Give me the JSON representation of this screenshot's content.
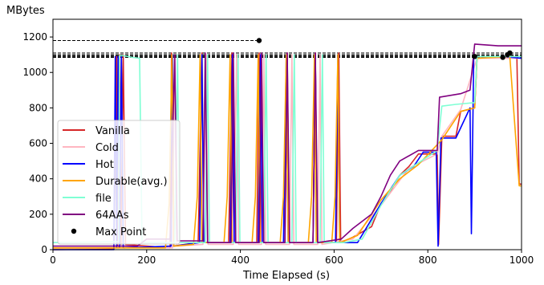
{
  "chart_data": {
    "type": "line",
    "ylabel": "MBytes",
    "xlabel": "Time Elapsed (s)",
    "xlim": [
      0,
      1000
    ],
    "ylim": [
      0,
      1300
    ],
    "x_ticks": [
      0,
      200,
      400,
      600,
      800,
      1000
    ],
    "y_ticks": [
      0,
      200,
      400,
      600,
      800,
      1000,
      1200
    ],
    "grid": false,
    "legend_position": "lower-left",
    "series": [
      {
        "name": "Vanilla",
        "color": "#d62728",
        "points": [
          [
            0,
            0
          ],
          [
            130,
            5
          ],
          [
            136,
            1090
          ],
          [
            138,
            20
          ],
          [
            142,
            1100
          ],
          [
            145,
            30
          ],
          [
            150,
            1100
          ],
          [
            155,
            30
          ],
          [
            250,
            10
          ],
          [
            253,
            1110
          ],
          [
            256,
            20
          ],
          [
            310,
            40
          ],
          [
            318,
            1110
          ],
          [
            322,
            40
          ],
          [
            375,
            40
          ],
          [
            382,
            1110
          ],
          [
            386,
            40
          ],
          [
            435,
            40
          ],
          [
            440,
            1110
          ],
          [
            444,
            40
          ],
          [
            495,
            40
          ],
          [
            500,
            1110
          ],
          [
            504,
            40
          ],
          [
            555,
            40
          ],
          [
            560,
            1110
          ],
          [
            564,
            40
          ],
          [
            605,
            40
          ],
          [
            610,
            1110
          ],
          [
            614,
            40
          ],
          [
            640,
            70
          ],
          [
            680,
            130
          ],
          [
            700,
            260
          ],
          [
            720,
            330
          ],
          [
            740,
            420
          ],
          [
            760,
            470
          ],
          [
            780,
            540
          ],
          [
            820,
            540
          ],
          [
            823,
            30
          ],
          [
            830,
            640
          ],
          [
            860,
            640
          ],
          [
            870,
            780
          ],
          [
            900,
            800
          ],
          [
            905,
            1080
          ],
          [
            990,
            1090
          ],
          [
            995,
            370
          ],
          [
            1000,
            370
          ]
        ]
      },
      {
        "name": "Cold",
        "color": "#ffb6c1",
        "points": [
          [
            0,
            5
          ],
          [
            140,
            10
          ],
          [
            146,
            1090
          ],
          [
            150,
            20
          ],
          [
            255,
            10
          ],
          [
            260,
            1100
          ],
          [
            264,
            20
          ],
          [
            320,
            30
          ],
          [
            327,
            1100
          ],
          [
            331,
            30
          ],
          [
            385,
            30
          ],
          [
            392,
            1100
          ],
          [
            396,
            30
          ],
          [
            445,
            30
          ],
          [
            450,
            1100
          ],
          [
            454,
            30
          ],
          [
            505,
            30
          ],
          [
            510,
            1100
          ],
          [
            514,
            30
          ],
          [
            565,
            30
          ],
          [
            570,
            1100
          ],
          [
            574,
            30
          ],
          [
            640,
            60
          ],
          [
            700,
            250
          ],
          [
            760,
            460
          ],
          [
            820,
            540
          ],
          [
            830,
            640
          ],
          [
            870,
            790
          ],
          [
            905,
            1080
          ],
          [
            1000,
            1080
          ]
        ]
      },
      {
        "name": "Hot",
        "color": "#0000ff",
        "points": [
          [
            0,
            0
          ],
          [
            130,
            0
          ],
          [
            133,
            1090
          ],
          [
            136,
            10
          ],
          [
            139,
            1090
          ],
          [
            142,
            10
          ],
          [
            146,
            1090
          ],
          [
            150,
            10
          ],
          [
            252,
            20
          ],
          [
            255,
            1100
          ],
          [
            258,
            20
          ],
          [
            313,
            40
          ],
          [
            318,
            1100
          ],
          [
            322,
            40
          ],
          [
            378,
            40
          ],
          [
            383,
            1100
          ],
          [
            387,
            40
          ],
          [
            438,
            40
          ],
          [
            443,
            1100
          ],
          [
            447,
            40
          ],
          [
            492,
            40
          ],
          [
            498,
            1100
          ],
          [
            502,
            40
          ],
          [
            555,
            40
          ],
          [
            560,
            1100
          ],
          [
            564,
            40
          ],
          [
            603,
            40
          ],
          [
            608,
            1100
          ],
          [
            612,
            40
          ],
          [
            650,
            40
          ],
          [
            700,
            260
          ],
          [
            740,
            420
          ],
          [
            770,
            470
          ],
          [
            790,
            550
          ],
          [
            818,
            550
          ],
          [
            822,
            20
          ],
          [
            828,
            630
          ],
          [
            860,
            630
          ],
          [
            890,
            800
          ],
          [
            893,
            90
          ],
          [
            898,
            1080
          ],
          [
            960,
            1090
          ],
          [
            1000,
            1080
          ]
        ]
      },
      {
        "name": "Durable(avg.)",
        "color": "#ffa500",
        "points": [
          [
            0,
            10
          ],
          [
            240,
            10
          ],
          [
            248,
            260
          ],
          [
            254,
            1100
          ],
          [
            258,
            20
          ],
          [
            300,
            30
          ],
          [
            308,
            300
          ],
          [
            314,
            1100
          ],
          [
            318,
            40
          ],
          [
            365,
            40
          ],
          [
            372,
            300
          ],
          [
            378,
            1100
          ],
          [
            382,
            40
          ],
          [
            425,
            40
          ],
          [
            432,
            300
          ],
          [
            438,
            1100
          ],
          [
            442,
            40
          ],
          [
            485,
            40
          ],
          [
            492,
            300
          ],
          [
            498,
            1100
          ],
          [
            502,
            40
          ],
          [
            545,
            40
          ],
          [
            552,
            300
          ],
          [
            558,
            1100
          ],
          [
            562,
            40
          ],
          [
            595,
            40
          ],
          [
            602,
            300
          ],
          [
            608,
            1100
          ],
          [
            612,
            40
          ],
          [
            650,
            80
          ],
          [
            700,
            280
          ],
          [
            740,
            400
          ],
          [
            780,
            480
          ],
          [
            830,
            620
          ],
          [
            870,
            780
          ],
          [
            900,
            800
          ],
          [
            905,
            1080
          ],
          [
            975,
            1090
          ],
          [
            995,
            360
          ],
          [
            1000,
            360
          ]
        ]
      },
      {
        "name": "file",
        "color": "#7fffd4",
        "points": [
          [
            0,
            40
          ],
          [
            140,
            45
          ],
          [
            142,
            1095
          ],
          [
            150,
            1095
          ],
          [
            160,
            1090
          ],
          [
            170,
            1085
          ],
          [
            185,
            1080
          ],
          [
            190,
            40
          ],
          [
            260,
            40
          ],
          [
            266,
            1100
          ],
          [
            270,
            40
          ],
          [
            325,
            40
          ],
          [
            330,
            1100
          ],
          [
            334,
            40
          ],
          [
            390,
            40
          ],
          [
            395,
            1100
          ],
          [
            399,
            40
          ],
          [
            450,
            40
          ],
          [
            455,
            1100
          ],
          [
            459,
            40
          ],
          [
            510,
            40
          ],
          [
            515,
            1100
          ],
          [
            519,
            40
          ],
          [
            570,
            40
          ],
          [
            575,
            1100
          ],
          [
            579,
            40
          ],
          [
            620,
            40
          ],
          [
            660,
            60
          ],
          [
            700,
            250
          ],
          [
            740,
            420
          ],
          [
            780,
            490
          ],
          [
            820,
            560
          ],
          [
            830,
            810
          ],
          [
            860,
            820
          ],
          [
            900,
            830
          ],
          [
            905,
            1090
          ],
          [
            1000,
            1090
          ]
        ]
      },
      {
        "name": "64AAs",
        "color": "#800080",
        "points": [
          [
            0,
            20
          ],
          [
            180,
            20
          ],
          [
            200,
            60
          ],
          [
            250,
            60
          ],
          [
            260,
            1100
          ],
          [
            265,
            50
          ],
          [
            320,
            50
          ],
          [
            325,
            1110
          ],
          [
            330,
            40
          ],
          [
            380,
            40
          ],
          [
            385,
            1110
          ],
          [
            390,
            40
          ],
          [
            440,
            40
          ],
          [
            445,
            1110
          ],
          [
            450,
            40
          ],
          [
            495,
            40
          ],
          [
            500,
            1110
          ],
          [
            505,
            40
          ],
          [
            555,
            40
          ],
          [
            560,
            1110
          ],
          [
            565,
            40
          ],
          [
            615,
            60
          ],
          [
            640,
            120
          ],
          [
            680,
            200
          ],
          [
            700,
            300
          ],
          [
            720,
            420
          ],
          [
            740,
            500
          ],
          [
            780,
            560
          ],
          [
            820,
            560
          ],
          [
            825,
            860
          ],
          [
            870,
            880
          ],
          [
            890,
            900
          ],
          [
            900,
            1160
          ],
          [
            950,
            1150
          ],
          [
            1000,
            1150
          ]
        ]
      }
    ],
    "max_points": [
      {
        "x": 440,
        "y": 1180
      },
      {
        "x": 900,
        "y": 1090
      },
      {
        "x": 960,
        "y": 1085
      },
      {
        "x": 970,
        "y": 1100
      },
      {
        "x": 975,
        "y": 1110
      }
    ],
    "max_point_label": "Max Point",
    "reference_lines_y": [
      1180,
      1110,
      1100,
      1095,
      1090,
      1085
    ]
  }
}
